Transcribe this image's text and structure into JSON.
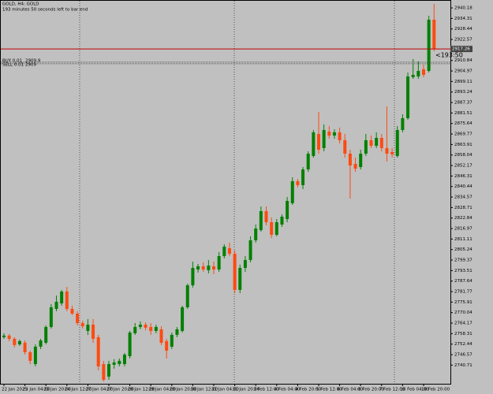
{
  "chart_data": {
    "type": "candlestick",
    "title": "GOLD, H4: GOLD",
    "subtitle": "193 minutes 50 seconds left to bar end",
    "timer": "<193:50",
    "up_color": "#008000",
    "down_color": "#ff4a10",
    "bid_line_color": "#c00000",
    "ylim": [
      2730.3,
      2944.6
    ],
    "yticks": [
      2940.18,
      2934.31,
      2928.44,
      2922.57,
      2916.71,
      2910.84,
      2904.97,
      2899.11,
      2893.24,
      2887.37,
      2881.51,
      2875.64,
      2869.77,
      2863.91,
      2858.04,
      2852.17,
      2846.31,
      2840.44,
      2834.57,
      2828.71,
      2822.84,
      2816.97,
      2811.11,
      2805.24,
      2799.37,
      2793.51,
      2787.64,
      2781.77,
      2775.91,
      2770.04,
      2764.17,
      2758.31,
      2752.44,
      2746.57,
      2740.71
    ],
    "categories": [
      "22 Jan 2025",
      null,
      null,
      null,
      "23 Jan 04:00",
      null,
      null,
      null,
      "23 Jan 20:00",
      null,
      null,
      null,
      "24 Jan 12:00",
      null,
      null,
      null,
      "27 Jan 04:00",
      null,
      null,
      null,
      "27 Jan 20:00",
      null,
      null,
      null,
      "28 Jan 12:00",
      null,
      null,
      null,
      "29 Jan 04:00",
      null,
      null,
      null,
      "29 Jan 20:00",
      null,
      null,
      null,
      "30 Jan 12:00",
      null,
      null,
      null,
      "31 Jan 04:00",
      null,
      null,
      null,
      "31 Jan 20:00",
      null,
      null,
      null,
      "3 Feb 12:00",
      null,
      null,
      null,
      "4 Feb 04:00",
      null,
      null,
      null,
      "4 Feb 20:00",
      null,
      null,
      null,
      "5 Feb 12:00",
      null,
      null,
      null,
      "6 Feb 04:00",
      null,
      null,
      null,
      "6 Feb 20:00",
      null,
      null,
      null,
      "7 Feb 12:00",
      null,
      null,
      null,
      "10 Feb 04:00",
      null,
      null,
      null,
      "10 Feb 20:00",
      null,
      null
    ],
    "open": [
      2756.3,
      2757.2,
      2755.4,
      2752.3,
      2753.2,
      2747.9,
      2741.3,
      2751.0,
      2753.2,
      2762.0,
      2772.1,
      2775.2,
      2781.8,
      2772.1,
      2769.5,
      2764.2,
      2759.8,
      2763.3,
      2756.3,
      2741.3,
      2734.3,
      2740.9,
      2741.3,
      2741.3,
      2745.7,
      2758.5,
      2762.0,
      2763.3,
      2762.0,
      2759.8,
      2760.7,
      2754.1,
      2751.0,
      2757.6,
      2759.8,
      2773.0,
      2785.3,
      2794.1,
      2795.9,
      2793.7,
      2795.9,
      2794.1,
      2801.6,
      2806.0,
      2802.9,
      2782.7,
      2795.0,
      2799.4,
      2810.4,
      2816.1,
      2826.7,
      2820.5,
      2813.5,
      2819.2,
      2822.3,
      2831.1,
      2843.4,
      2841.2,
      2850.0,
      2857.5,
      2869.8,
      2861.9,
      2871.1,
      2868.9,
      2870.7,
      2866.3,
      2858.8,
      2853.1,
      2851.3,
      2858.8,
      2866.3,
      2863.2,
      2867.6,
      2861.9,
      2859.7,
      2857.5,
      2872.0,
      2878.6,
      2901.5,
      2901.9,
      2905.9,
      2905.0,
      2933.6
    ],
    "high": [
      2758.5,
      2758.0,
      2756.3,
      2755.0,
      2754.5,
      2748.8,
      2752.3,
      2755.4,
      2762.9,
      2774.8,
      2779.6,
      2782.7,
      2784.4,
      2773.9,
      2770.8,
      2765.5,
      2766.4,
      2766.4,
      2757.6,
      2743.1,
      2743.1,
      2744.0,
      2744.4,
      2747.5,
      2759.8,
      2764.2,
      2765.1,
      2764.6,
      2764.2,
      2763.3,
      2762.4,
      2755.4,
      2758.9,
      2762.0,
      2773.9,
      2786.2,
      2798.5,
      2797.2,
      2798.1,
      2799.4,
      2798.5,
      2803.8,
      2808.2,
      2809.1,
      2804.7,
      2796.8,
      2801.6,
      2812.6,
      2819.2,
      2829.3,
      2829.3,
      2823.2,
      2822.3,
      2824.9,
      2834.6,
      2845.6,
      2844.7,
      2851.3,
      2860.1,
      2872.0,
      2882.1,
      2875.1,
      2874.2,
      2872.4,
      2873.3,
      2869.8,
      2861.0,
      2856.6,
      2861.0,
      2869.8,
      2868.9,
      2870.7,
      2869.8,
      2885.2,
      2861.9,
      2874.2,
      2880.8,
      2904.1,
      2911.6,
      2910.3,
      2908.5,
      2935.8,
      2942.4
    ],
    "low": [
      2755.4,
      2754.1,
      2750.6,
      2751.4,
      2746.6,
      2741.3,
      2740.0,
      2749.7,
      2752.3,
      2761.1,
      2770.8,
      2773.9,
      2770.8,
      2768.6,
      2762.9,
      2761.1,
      2757.6,
      2753.2,
      2737.8,
      2731.6,
      2732.5,
      2738.7,
      2740.0,
      2740.0,
      2744.4,
      2757.6,
      2760.7,
      2760.2,
      2757.6,
      2758.5,
      2751.9,
      2744.4,
      2749.7,
      2756.3,
      2758.9,
      2772.1,
      2784.0,
      2792.4,
      2792.8,
      2791.9,
      2791.5,
      2792.8,
      2800.3,
      2801.6,
      2780.9,
      2780.9,
      2792.8,
      2798.1,
      2809.1,
      2815.2,
      2818.8,
      2811.7,
      2812.6,
      2817.9,
      2820.5,
      2830.2,
      2839.9,
      2839.0,
      2848.7,
      2856.6,
      2858.8,
      2860.1,
      2867.2,
      2867.2,
      2864.5,
      2856.6,
      2833.7,
      2848.7,
      2850.0,
      2857.5,
      2861.9,
      2861.9,
      2860.1,
      2854.4,
      2856.6,
      2856.6,
      2870.7,
      2877.7,
      2900.6,
      2900.6,
      2901.5,
      2904.1,
      2916.0
    ],
    "close": [
      2757.2,
      2755.4,
      2751.9,
      2754.1,
      2747.9,
      2743.1,
      2751.0,
      2754.5,
      2762.0,
      2773.0,
      2776.1,
      2781.8,
      2772.1,
      2769.5,
      2764.2,
      2762.4,
      2763.3,
      2755.4,
      2740.0,
      2732.5,
      2741.3,
      2742.2,
      2743.1,
      2746.6,
      2758.9,
      2762.0,
      2763.3,
      2761.6,
      2759.8,
      2762.0,
      2753.2,
      2748.8,
      2757.6,
      2760.7,
      2773.0,
      2785.3,
      2795.0,
      2795.9,
      2794.1,
      2796.3,
      2794.1,
      2801.6,
      2806.9,
      2802.9,
      2782.7,
      2795.0,
      2799.4,
      2810.4,
      2817.0,
      2826.7,
      2820.5,
      2813.5,
      2820.5,
      2823.6,
      2832.4,
      2843.4,
      2841.2,
      2850.0,
      2858.8,
      2870.7,
      2861.0,
      2872.0,
      2868.9,
      2870.7,
      2866.3,
      2858.8,
      2852.2,
      2850.4,
      2858.8,
      2866.3,
      2863.2,
      2867.6,
      2861.9,
      2858.8,
      2858.4,
      2872.0,
      2878.6,
      2901.9,
      2902.8,
      2905.0,
      2902.8,
      2933.6,
      2917.26
    ],
    "orders": [
      {
        "label": "BUY 0.01",
        "price": 2909.9
      },
      {
        "label": "SELL 0.01",
        "price": 2909.0
      }
    ]
  }
}
